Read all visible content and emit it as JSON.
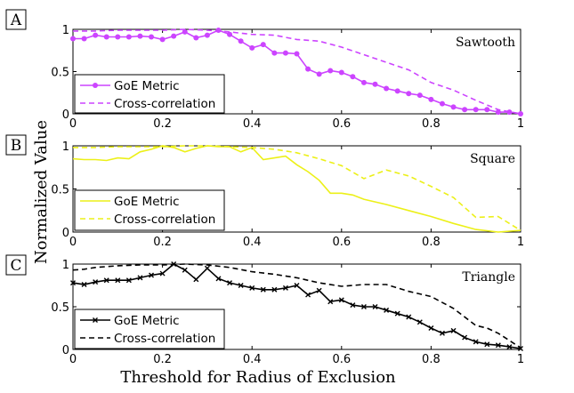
{
  "chart_data": {
    "type": "line",
    "ylabel": "Normalized Value",
    "xlabel": "Threshold for Radius of Exclusion",
    "xlim": [
      0,
      1
    ],
    "ylim": [
      0,
      1
    ],
    "xticks": [
      "0",
      "0.2",
      "0.4",
      "0.6",
      "0.8",
      "1"
    ],
    "yticks": [
      "0",
      "0.5",
      "1"
    ],
    "panels": [
      {
        "letter": "A",
        "title": "Sawtooth",
        "color": "#cc44ff",
        "marker": "circle",
        "series": [
          {
            "name": "GoE Metric",
            "style": "solid",
            "x": [
              0,
              0.025,
              0.05,
              0.075,
              0.1,
              0.125,
              0.15,
              0.175,
              0.2,
              0.225,
              0.25,
              0.275,
              0.3,
              0.325,
              0.35,
              0.375,
              0.4,
              0.425,
              0.45,
              0.475,
              0.5,
              0.525,
              0.55,
              0.575,
              0.6,
              0.625,
              0.65,
              0.675,
              0.7,
              0.725,
              0.75,
              0.775,
              0.8,
              0.825,
              0.85,
              0.875,
              0.9,
              0.925,
              0.95,
              0.975,
              1
            ],
            "y": [
              0.89,
              0.89,
              0.93,
              0.91,
              0.91,
              0.91,
              0.92,
              0.91,
              0.88,
              0.92,
              0.97,
              0.9,
              0.93,
              0.99,
              0.94,
              0.86,
              0.78,
              0.82,
              0.72,
              0.72,
              0.71,
              0.53,
              0.47,
              0.51,
              0.49,
              0.44,
              0.37,
              0.35,
              0.3,
              0.27,
              0.24,
              0.22,
              0.17,
              0.12,
              0.08,
              0.05,
              0.05,
              0.05,
              0.02,
              0.02,
              0.0
            ]
          },
          {
            "name": "Cross-correlation",
            "style": "dashed",
            "x": [
              0,
              0.05,
              0.1,
              0.15,
              0.2,
              0.25,
              0.3,
              0.35,
              0.4,
              0.45,
              0.5,
              0.55,
              0.6,
              0.65,
              0.7,
              0.75,
              0.8,
              0.85,
              0.9,
              0.95,
              1
            ],
            "y": [
              0.98,
              0.98,
              0.99,
              0.99,
              0.99,
              1.0,
              0.99,
              0.97,
              0.94,
              0.93,
              0.88,
              0.86,
              0.79,
              0.7,
              0.61,
              0.52,
              0.37,
              0.28,
              0.16,
              0.05,
              0.0
            ]
          }
        ]
      },
      {
        "letter": "B",
        "title": "Square",
        "color": "#ecf018",
        "marker": "none",
        "series": [
          {
            "name": "GoE Metric",
            "style": "solid",
            "x": [
              0,
              0.025,
              0.05,
              0.075,
              0.1,
              0.125,
              0.15,
              0.175,
              0.2,
              0.225,
              0.25,
              0.275,
              0.3,
              0.325,
              0.35,
              0.375,
              0.4,
              0.425,
              0.45,
              0.475,
              0.5,
              0.525,
              0.55,
              0.575,
              0.6,
              0.625,
              0.65,
              0.7,
              0.75,
              0.8,
              0.85,
              0.9,
              0.95,
              1
            ],
            "y": [
              0.85,
              0.84,
              0.84,
              0.83,
              0.86,
              0.85,
              0.93,
              0.96,
              1.0,
              0.98,
              0.93,
              0.97,
              1.0,
              0.99,
              0.99,
              0.93,
              0.98,
              0.84,
              0.86,
              0.88,
              0.78,
              0.7,
              0.6,
              0.45,
              0.45,
              0.43,
              0.38,
              0.32,
              0.25,
              0.18,
              0.1,
              0.03,
              0.0,
              0.02
            ]
          },
          {
            "name": "Cross-correlation",
            "style": "dashed",
            "x": [
              0,
              0.05,
              0.1,
              0.15,
              0.2,
              0.25,
              0.3,
              0.35,
              0.4,
              0.45,
              0.5,
              0.55,
              0.6,
              0.65,
              0.7,
              0.75,
              0.8,
              0.85,
              0.9,
              0.95,
              0.975,
              1
            ],
            "y": [
              0.98,
              0.98,
              0.99,
              0.99,
              0.99,
              1.0,
              1.0,
              0.99,
              0.98,
              0.96,
              0.92,
              0.85,
              0.77,
              0.62,
              0.72,
              0.65,
              0.53,
              0.4,
              0.17,
              0.18,
              0.1,
              0.02
            ]
          }
        ]
      },
      {
        "letter": "C",
        "title": "Triangle",
        "color": "#000000",
        "marker": "x",
        "series": [
          {
            "name": "GoE Metric",
            "style": "solid",
            "x": [
              0,
              0.025,
              0.05,
              0.075,
              0.1,
              0.125,
              0.15,
              0.175,
              0.2,
              0.225,
              0.25,
              0.275,
              0.3,
              0.325,
              0.35,
              0.375,
              0.4,
              0.425,
              0.45,
              0.475,
              0.5,
              0.525,
              0.55,
              0.575,
              0.6,
              0.625,
              0.65,
              0.675,
              0.7,
              0.725,
              0.75,
              0.775,
              0.8,
              0.825,
              0.85,
              0.875,
              0.9,
              0.925,
              0.95,
              0.975,
              1
            ],
            "y": [
              0.78,
              0.76,
              0.79,
              0.81,
              0.81,
              0.81,
              0.84,
              0.87,
              0.89,
              1.0,
              0.93,
              0.82,
              0.95,
              0.83,
              0.78,
              0.75,
              0.72,
              0.7,
              0.7,
              0.72,
              0.75,
              0.64,
              0.69,
              0.56,
              0.58,
              0.52,
              0.5,
              0.5,
              0.46,
              0.42,
              0.38,
              0.32,
              0.25,
              0.19,
              0.22,
              0.14,
              0.09,
              0.06,
              0.05,
              0.03,
              0.01
            ]
          },
          {
            "name": "Cross-correlation",
            "style": "dashed",
            "x": [
              0,
              0.025,
              0.05,
              0.1,
              0.15,
              0.2,
              0.25,
              0.3,
              0.35,
              0.4,
              0.45,
              0.5,
              0.55,
              0.6,
              0.65,
              0.7,
              0.75,
              0.8,
              0.85,
              0.9,
              0.925,
              0.95,
              1
            ],
            "y": [
              0.93,
              0.94,
              0.96,
              0.98,
              0.99,
              0.99,
              1.0,
              0.99,
              0.96,
              0.91,
              0.88,
              0.84,
              0.78,
              0.74,
              0.76,
              0.76,
              0.68,
              0.62,
              0.48,
              0.28,
              0.25,
              0.19,
              0.02
            ]
          }
        ]
      }
    ]
  }
}
